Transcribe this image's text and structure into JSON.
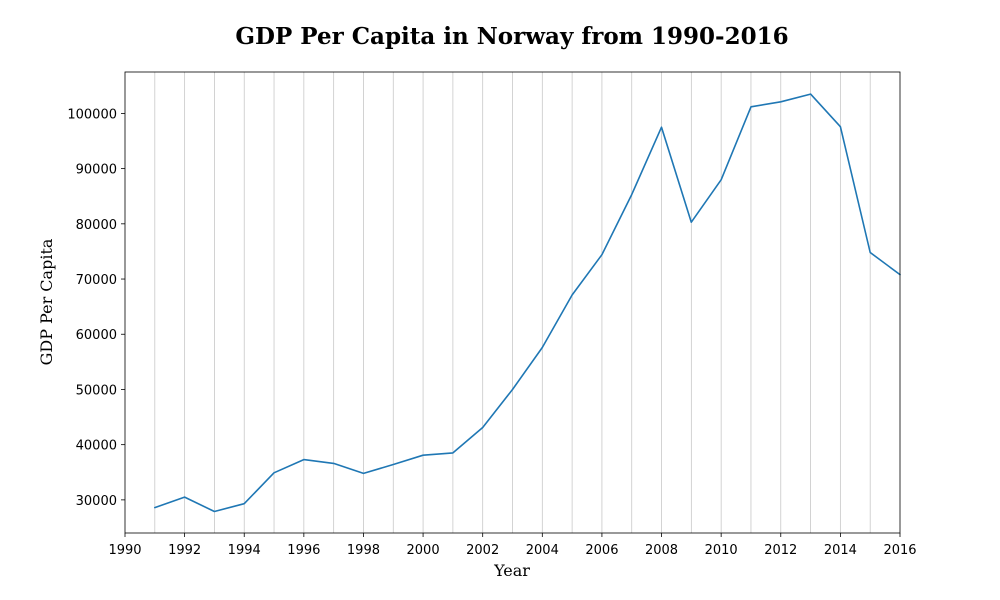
{
  "chart_data": {
    "type": "line",
    "title": "GDP Per Capita in Norway from 1990-2016",
    "xlabel": "Year",
    "ylabel": "GDP Per Capita",
    "xlim": [
      1990,
      2016
    ],
    "ylim": [
      24000,
      107500
    ],
    "x_ticks": [
      1990,
      1992,
      1994,
      1996,
      1998,
      2000,
      2002,
      2004,
      2006,
      2008,
      2010,
      2012,
      2014,
      2016
    ],
    "y_ticks": [
      30000,
      40000,
      50000,
      60000,
      70000,
      80000,
      90000,
      100000
    ],
    "grid": "vertical lines at every year",
    "series": [
      {
        "color": "#1f77b4",
        "x": [
          1991,
          1992,
          1993,
          1994,
          1995,
          1996,
          1997,
          1998,
          1999,
          2000,
          2001,
          2002,
          2003,
          2004,
          2005,
          2006,
          2007,
          2008,
          2009,
          2010,
          2011,
          2012,
          2013,
          2014,
          2015,
          2016
        ],
        "values": [
          28600,
          30500,
          27900,
          29300,
          34900,
          37300,
          36600,
          34800,
          36400,
          38100,
          38500,
          43100,
          50000,
          57600,
          67100,
          74400,
          85300,
          97500,
          80300,
          88000,
          101200,
          102100,
          103500,
          97600,
          74800,
          70800
        ]
      }
    ]
  }
}
